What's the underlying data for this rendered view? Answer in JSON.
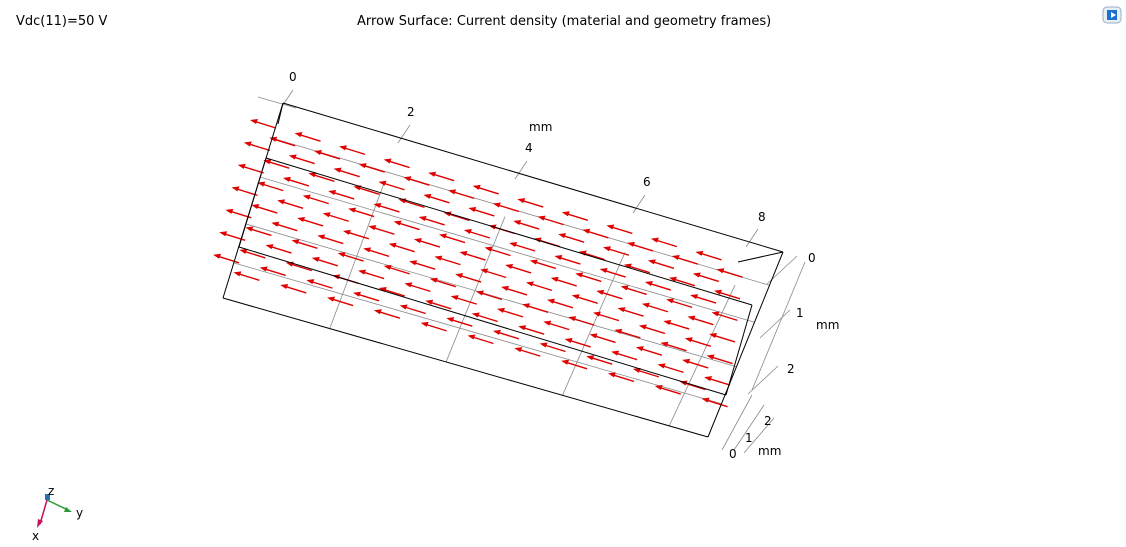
{
  "header": {
    "parameter_value": "Vdc(11)=50 V",
    "plot_title": "Arrow Surface: Current density (material and geometry frames)"
  },
  "toolbar": {
    "view_icon": "view-settings-icon"
  },
  "axes": {
    "x_axis": {
      "ticks": [
        "0",
        "2",
        "4",
        "6",
        "8"
      ],
      "unit": "mm"
    },
    "z_axis": {
      "ticks": [
        "0",
        "1",
        "2"
      ],
      "unit": "mm"
    },
    "y_axis": {
      "ticks": [
        "0",
        "1",
        "2"
      ],
      "unit": "mm"
    }
  },
  "triad": {
    "x": "x",
    "y": "y",
    "z": "z"
  },
  "colors": {
    "arrow": "#e00000",
    "edge": "#000000",
    "grid": "#8a8a8a",
    "triad_x": "#c8105a",
    "triad_y": "#2a9a3a",
    "triad_z": "#2a6fb5"
  }
}
